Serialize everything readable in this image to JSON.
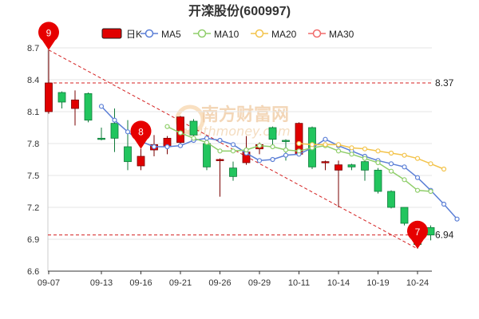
{
  "title": "开滦股份(600997)",
  "legend": [
    {
      "id": "k",
      "label": "日K",
      "color": "#e00000",
      "kind": "box"
    },
    {
      "id": "ma5",
      "label": "MA5",
      "color": "#5b7fd6",
      "kind": "line"
    },
    {
      "id": "ma10",
      "label": "MA10",
      "color": "#8fce6a",
      "kind": "line"
    },
    {
      "id": "ma20",
      "label": "MA20",
      "color": "#f3c34a",
      "kind": "line"
    },
    {
      "id": "ma30",
      "label": "MA30",
      "color": "#f06a6a",
      "kind": "line"
    }
  ],
  "watermark": {
    "cn": "南方财富网",
    "en": "southmoney.com"
  },
  "chart_data": {
    "type": "candlestick",
    "title": "开滦股份(600997)",
    "ylim": [
      6.6,
      8.7
    ],
    "yticks": [
      6.6,
      6.9,
      7.2,
      7.5,
      7.8,
      8.1,
      8.4,
      8.7
    ],
    "grid": true,
    "legend_position": "top",
    "x_tick_labels": [
      {
        "label": "09-07",
        "index": 0
      },
      {
        "label": "09-13",
        "index": 4
      },
      {
        "label": "09-16",
        "index": 7
      },
      {
        "label": "09-21",
        "index": 10
      },
      {
        "label": "09-26",
        "index": 13
      },
      {
        "label": "09-29",
        "index": 16
      },
      {
        "label": "10-11",
        "index": 19
      },
      {
        "label": "10-14",
        "index": 22
      },
      {
        "label": "10-19",
        "index": 25
      },
      {
        "label": "10-24",
        "index": 28
      }
    ],
    "candles": [
      {
        "o": 8.1,
        "c": 8.37,
        "h": 8.68,
        "l": 8.08
      },
      {
        "o": 8.28,
        "c": 8.19,
        "h": 8.29,
        "l": 8.13
      },
      {
        "o": 8.13,
        "c": 8.21,
        "h": 8.3,
        "l": 7.97
      },
      {
        "o": 8.27,
        "c": 8.02,
        "h": 8.28,
        "l": 8.0
      },
      {
        "o": 7.85,
        "c": 7.84,
        "h": 7.95,
        "l": 7.83
      },
      {
        "o": 7.99,
        "c": 7.85,
        "h": 8.13,
        "l": 7.72
      },
      {
        "o": 7.77,
        "c": 7.63,
        "h": 8.02,
        "l": 7.55
      },
      {
        "o": 7.59,
        "c": 7.68,
        "h": 7.75,
        "l": 7.55
      },
      {
        "o": 7.74,
        "c": 7.79,
        "h": 7.88,
        "l": 7.68
      },
      {
        "o": 7.77,
        "c": 7.85,
        "h": 7.87,
        "l": 7.7
      },
      {
        "o": 7.81,
        "c": 8.05,
        "h": 8.06,
        "l": 7.78
      },
      {
        "o": 8.01,
        "c": 7.88,
        "h": 8.03,
        "l": 7.84
      },
      {
        "o": 7.8,
        "c": 7.58,
        "h": 7.83,
        "l": 7.55
      },
      {
        "o": 7.64,
        "c": 7.65,
        "h": 7.66,
        "l": 7.3
      },
      {
        "o": 7.57,
        "c": 7.49,
        "h": 7.63,
        "l": 7.45
      },
      {
        "o": 7.62,
        "c": 7.72,
        "h": 7.87,
        "l": 7.6
      },
      {
        "o": 7.75,
        "c": 7.79,
        "h": 7.81,
        "l": 7.7
      },
      {
        "o": 7.95,
        "c": 7.84,
        "h": 7.96,
        "l": 7.76
      },
      {
        "o": 7.83,
        "c": 7.82,
        "h": 7.84,
        "l": 7.64
      },
      {
        "o": 7.7,
        "c": 7.99,
        "h": 8.0,
        "l": 7.68
      },
      {
        "o": 7.95,
        "c": 7.58,
        "h": 7.96,
        "l": 7.56
      },
      {
        "o": 7.62,
        "c": 7.63,
        "h": 7.64,
        "l": 7.55
      },
      {
        "o": 7.55,
        "c": 7.6,
        "h": 7.64,
        "l": 7.2
      },
      {
        "o": 7.6,
        "c": 7.58,
        "h": 7.61,
        "l": 7.55
      },
      {
        "o": 7.63,
        "c": 7.55,
        "h": 7.65,
        "l": 7.45
      },
      {
        "o": 7.55,
        "c": 7.35,
        "h": 7.57,
        "l": 7.33
      },
      {
        "o": 7.35,
        "c": 7.2,
        "h": 7.36,
        "l": 7.19
      },
      {
        "o": 7.2,
        "c": 7.05,
        "h": 7.2,
        "l": 7.03
      },
      {
        "o": 7.03,
        "c": 6.85,
        "h": 7.04,
        "l": 6.81
      },
      {
        "o": 7.01,
        "c": 6.94,
        "h": 7.03,
        "l": 6.89
      }
    ],
    "series": [
      {
        "id": "ma5",
        "name": "MA5",
        "color": "#5b7fd6",
        "start": 4,
        "values": [
          8.15,
          8.02,
          7.91,
          7.82,
          7.77,
          7.77,
          7.78,
          7.83,
          7.85,
          7.83,
          7.79,
          7.71,
          7.64,
          7.65,
          7.69,
          7.7,
          7.76,
          7.84,
          7.78,
          7.73,
          7.68,
          7.64,
          7.61,
          7.58,
          7.48,
          7.36,
          7.23,
          7.09
        ]
      },
      {
        "id": "ma10",
        "name": "MA10",
        "color": "#8fce6a",
        "start": 9,
        "values": [
          7.96,
          7.9,
          7.85,
          7.81,
          7.73,
          7.73,
          7.74,
          7.78,
          7.77,
          7.74,
          7.73,
          7.76,
          7.78,
          7.73,
          7.7,
          7.66,
          7.62,
          7.54,
          7.46,
          7.36,
          7.35
        ]
      },
      {
        "id": "ma20",
        "name": "MA20",
        "color": "#f3c34a",
        "start": 19,
        "values": [
          7.8,
          7.79,
          7.79,
          7.79,
          7.76,
          7.75,
          7.73,
          7.71,
          7.69,
          7.66,
          7.61,
          7.56
        ]
      }
    ],
    "horizontal_lines": [
      {
        "value": 8.37,
        "label": "8.37"
      },
      {
        "value": 6.94,
        "label": "6.94"
      }
    ],
    "trend_line": {
      "from_index": 0,
      "from_value": 8.68,
      "to_index": 28,
      "to_value": 6.81
    },
    "markers": [
      {
        "index": 0,
        "value": 8.68,
        "label": "9"
      },
      {
        "index": 7,
        "value": 7.75,
        "label": "8"
      },
      {
        "index": 28,
        "value": 6.81,
        "label": "7"
      }
    ]
  }
}
